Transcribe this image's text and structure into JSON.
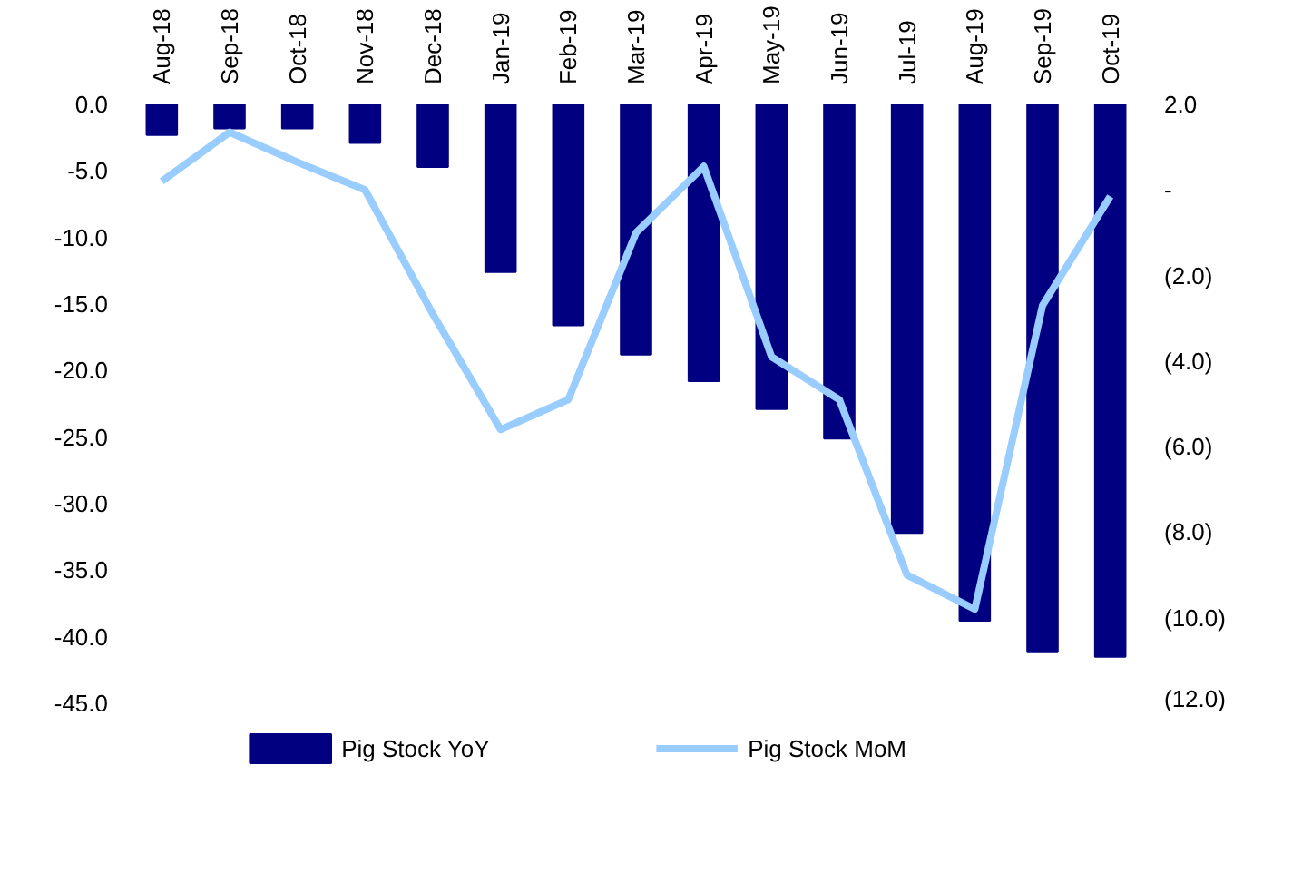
{
  "chart_data": {
    "type": "bar",
    "categories": [
      "Aug-18",
      "Sep-18",
      "Oct-18",
      "Nov-18",
      "Dec-18",
      "Jan-19",
      "Feb-19",
      "Mar-19",
      "Apr-19",
      "May-19",
      "Jun-19",
      "Jul-19",
      "Aug-19",
      "Sep-19",
      "Oct-19"
    ],
    "series": [
      {
        "name": "Pig Stock YoY",
        "color": "#000080",
        "values": [
          -2.3,
          -1.8,
          -1.8,
          -2.9,
          -4.7,
          -12.6,
          -16.6,
          -18.8,
          -20.8,
          -22.9,
          -25.1,
          -32.2,
          -38.8,
          -41.1,
          -41.5
        ]
      },
      {
        "name": "Pig Stock MoM",
        "color": "#99ccff",
        "type": "line",
        "axis": "y2",
        "values": [
          0.2,
          1.35,
          0.65,
          0.0,
          -2.9,
          -5.6,
          -4.9,
          -1.0,
          0.55,
          -3.9,
          -4.9,
          -9.0,
          -9.8,
          -2.7,
          -0.15
        ]
      }
    ],
    "ylim": [
      -45,
      0
    ],
    "yticks": [
      {
        "value": 0,
        "label": "0.0"
      },
      {
        "value": -5,
        "label": "-5.0"
      },
      {
        "value": -10,
        "label": "-10.0"
      },
      {
        "value": -15,
        "label": "-15.0"
      },
      {
        "value": -20,
        "label": "-20.0"
      },
      {
        "value": -25,
        "label": "-25.0"
      },
      {
        "value": -30,
        "label": "-30.0"
      },
      {
        "value": -35,
        "label": "-35.0"
      },
      {
        "value": -40,
        "label": "-40.0"
      },
      {
        "value": -45,
        "label": "-45.0"
      }
    ],
    "y2lim": [
      -12,
      2
    ],
    "y2ticks": [
      {
        "value": 2,
        "label": "2.0"
      },
      {
        "value": 0,
        "label": "-"
      },
      {
        "value": -2,
        "label": "(2.0)"
      },
      {
        "value": -4,
        "label": "(4.0)"
      },
      {
        "value": -6,
        "label": "(6.0)"
      },
      {
        "value": -8,
        "label": "(8.0)"
      },
      {
        "value": -10,
        "label": "(10.0)"
      },
      {
        "value": -12,
        "label": "(12.0)"
      }
    ],
    "legend": "bottom",
    "line_style": "solid"
  }
}
